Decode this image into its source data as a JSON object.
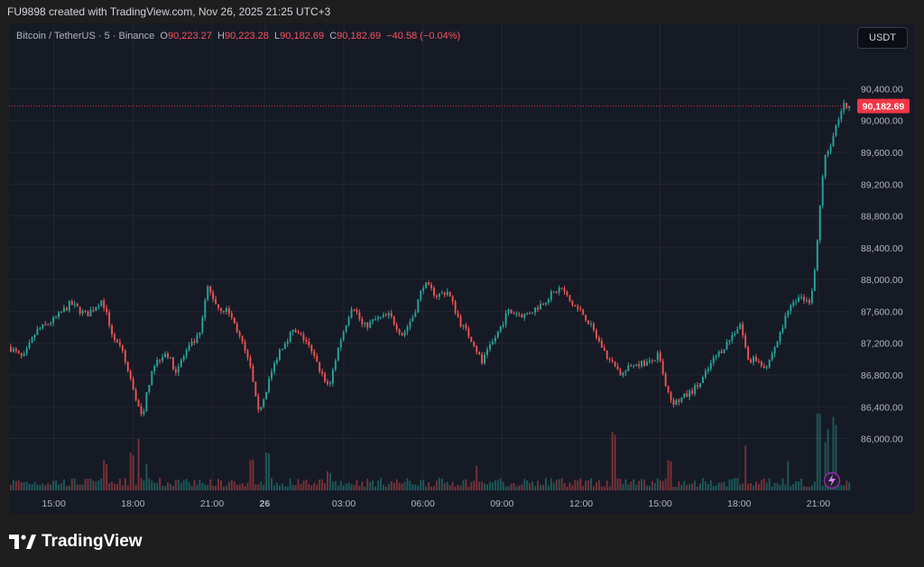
{
  "header": {
    "text": "FU9898 created with TradingView.com, Nov 26, 2025 21:25 UTC+3"
  },
  "legend": {
    "symbol": "Bitcoin / TetherUS · 5 · Binance",
    "o_label": "O",
    "o": "90,223.27",
    "h_label": "H",
    "h": "90,223.28",
    "l_label": "L",
    "l": "90,182.69",
    "c_label": "C",
    "c": "90,182.69",
    "change": "−40.58 (−0.04%)"
  },
  "currency_button": "USDT",
  "last_price_label": "90,182.69",
  "footer": {
    "brand": "TradingView"
  },
  "colors": {
    "up": "#26a69a",
    "down": "#ef5350",
    "background": "#161a25",
    "grid": "#232632",
    "price_line": "#f23645"
  },
  "chart_data": {
    "type": "candlestick",
    "y_ticks": [
      "90,400.00",
      "90,000.00",
      "89,600.00",
      "89,200.00",
      "88,800.00",
      "88,400.00",
      "88,000.00",
      "87,600.00",
      "87,200.00",
      "86,800.00",
      "86,400.00",
      "86,000.00"
    ],
    "ylim": [
      85700,
      90700
    ],
    "x_ticks": [
      {
        "label": "15:00",
        "t": 0.0
      },
      {
        "label": "18:00",
        "t": 3.0
      },
      {
        "label": "21:00",
        "t": 6.0
      },
      {
        "label": "26",
        "t": 8.0,
        "bold": true
      },
      {
        "label": "03:00",
        "t": 11.0
      },
      {
        "label": "06:00",
        "t": 14.0
      },
      {
        "label": "09:00",
        "t": 17.0
      },
      {
        "label": "12:00",
        "t": 20.0
      },
      {
        "label": "15:00",
        "t": 23.0
      },
      {
        "label": "18:00",
        "t": 26.0
      },
      {
        "label": "21:00",
        "t": 29.0
      }
    ],
    "xlim": [
      -1.7,
      30.2
    ],
    "price_path": [
      [
        -1.7,
        87150
      ],
      [
        -1.2,
        87000
      ],
      [
        -0.7,
        87350
      ],
      [
        0,
        87500
      ],
      [
        0.6,
        87700
      ],
      [
        1.2,
        87550
      ],
      [
        1.8,
        87750
      ],
      [
        2.2,
        87300
      ],
      [
        2.6,
        87050
      ],
      [
        3.0,
        86600
      ],
      [
        3.3,
        86250
      ],
      [
        3.7,
        86900
      ],
      [
        4.2,
        87100
      ],
      [
        4.6,
        86850
      ],
      [
        5.0,
        87100
      ],
      [
        5.5,
        87300
      ],
      [
        5.8,
        87900
      ],
      [
        6.2,
        87650
      ],
      [
        6.6,
        87600
      ],
      [
        7.0,
        87300
      ],
      [
        7.5,
        86800
      ],
      [
        7.7,
        86300
      ],
      [
        8.1,
        86700
      ],
      [
        8.5,
        87100
      ],
      [
        9.0,
        87350
      ],
      [
        9.5,
        87250
      ],
      [
        10.0,
        86900
      ],
      [
        10.4,
        86650
      ],
      [
        10.8,
        87200
      ],
      [
        11.3,
        87700
      ],
      [
        11.7,
        87400
      ],
      [
        12.2,
        87500
      ],
      [
        12.7,
        87550
      ],
      [
        13.2,
        87300
      ],
      [
        13.6,
        87550
      ],
      [
        14.0,
        87950
      ],
      [
        14.5,
        87800
      ],
      [
        14.9,
        87850
      ],
      [
        15.4,
        87450
      ],
      [
        15.9,
        87200
      ],
      [
        16.2,
        86950
      ],
      [
        16.6,
        87200
      ],
      [
        17.2,
        87600
      ],
      [
        17.8,
        87550
      ],
      [
        18.3,
        87650
      ],
      [
        18.8,
        87800
      ],
      [
        19.2,
        87900
      ],
      [
        19.6,
        87700
      ],
      [
        20.1,
        87550
      ],
      [
        20.6,
        87250
      ],
      [
        21.0,
        87000
      ],
      [
        21.5,
        86800
      ],
      [
        22.0,
        86950
      ],
      [
        22.6,
        86950
      ],
      [
        22.9,
        87050
      ],
      [
        23.2,
        86600
      ],
      [
        23.5,
        86450
      ],
      [
        24.0,
        86550
      ],
      [
        24.5,
        86700
      ],
      [
        25.0,
        87000
      ],
      [
        25.5,
        87200
      ],
      [
        26.0,
        87450
      ],
      [
        26.3,
        87000
      ],
      [
        26.6,
        87000
      ],
      [
        27.0,
        86900
      ],
      [
        27.5,
        87300
      ],
      [
        27.8,
        87600
      ],
      [
        28.3,
        87800
      ],
      [
        28.6,
        87700
      ],
      [
        28.8,
        88000
      ],
      [
        29.0,
        88800
      ],
      [
        29.2,
        89500
      ],
      [
        29.45,
        89700
      ],
      [
        29.7,
        90000
      ],
      [
        29.9,
        90200
      ],
      [
        30.0,
        90183
      ]
    ],
    "volume_spikes": [
      {
        "t": 1.9,
        "v": 0.35
      },
      {
        "t": 2.9,
        "v": 0.45
      },
      {
        "t": 3.2,
        "v": 0.6
      },
      {
        "t": 3.5,
        "v": 0.4
      },
      {
        "t": 7.5,
        "v": 0.35
      },
      {
        "t": 8.1,
        "v": 0.5
      },
      {
        "t": 10.4,
        "v": 0.25
      },
      {
        "t": 16.0,
        "v": 0.3
      },
      {
        "t": 21.2,
        "v": 0.85
      },
      {
        "t": 23.3,
        "v": 0.35
      },
      {
        "t": 26.2,
        "v": 0.55
      },
      {
        "t": 27.8,
        "v": 0.4
      },
      {
        "t": 29.0,
        "v": 1.0
      },
      {
        "t": 29.3,
        "v": 0.7
      },
      {
        "t": 29.6,
        "v": 0.85
      }
    ],
    "last_price": 90182.69
  }
}
